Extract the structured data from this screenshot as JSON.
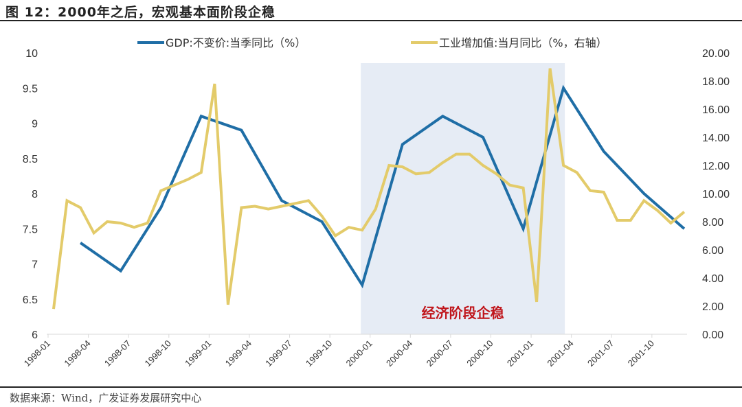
{
  "title": "图 12：2000年之后，宏观基本面阶段企稳",
  "source": "数据来源：Wind，广发证券发展研究中心",
  "chart_data": {
    "type": "line",
    "x": [
      "1998-01",
      "1998-02",
      "1998-03",
      "1998-04",
      "1998-05",
      "1998-06",
      "1998-07",
      "1998-08",
      "1998-09",
      "1998-10",
      "1998-11",
      "1998-12",
      "1999-01",
      "1999-02",
      "1999-03",
      "1999-04",
      "1999-05",
      "1999-06",
      "1999-07",
      "1999-08",
      "1999-09",
      "1999-10",
      "1999-11",
      "1999-12",
      "2000-01",
      "2000-02",
      "2000-03",
      "2000-04",
      "2000-05",
      "2000-06",
      "2000-07",
      "2000-08",
      "2000-09",
      "2000-10",
      "2000-11",
      "2000-12",
      "2001-01",
      "2001-02",
      "2001-03",
      "2001-04",
      "2001-05",
      "2001-06",
      "2001-07",
      "2001-08",
      "2001-09",
      "2001-10",
      "2001-11",
      "2001-12"
    ],
    "xtick_labels": [
      "1998-01",
      "1998-04",
      "1998-07",
      "1998-10",
      "1999-01",
      "1999-04",
      "1999-07",
      "1999-10",
      "2000-01",
      "2000-04",
      "2000-07",
      "2000-10",
      "2001-01",
      "2001-04",
      "2001-07",
      "2001-10"
    ],
    "series": [
      {
        "name": "GDP:不变价:当季同比（%）",
        "axis": "left",
        "color": "#1f6ea6",
        "values": [
          null,
          null,
          7.3,
          null,
          null,
          6.9,
          null,
          null,
          7.8,
          null,
          null,
          9.1,
          null,
          null,
          8.9,
          null,
          null,
          7.9,
          null,
          null,
          7.6,
          null,
          null,
          6.7,
          null,
          null,
          8.7,
          null,
          null,
          9.1,
          null,
          null,
          8.8,
          null,
          null,
          7.5,
          null,
          null,
          9.5,
          null,
          null,
          8.6,
          null,
          null,
          8.0,
          null,
          null,
          7.5
        ]
      },
      {
        "name": "工业增加值:当月同比（%，右轴）",
        "axis": "right",
        "color": "#e3cb6a",
        "values": [
          1.8,
          9.5,
          9.0,
          7.2,
          8.0,
          7.9,
          7.6,
          7.9,
          10.2,
          10.6,
          11.0,
          11.5,
          17.8,
          2.1,
          9.0,
          9.1,
          8.9,
          9.1,
          9.3,
          9.5,
          8.4,
          7.0,
          7.6,
          7.4,
          8.9,
          12.0,
          11.9,
          11.4,
          11.5,
          12.2,
          12.8,
          12.8,
          12.0,
          11.4,
          10.6,
          10.4,
          2.3,
          18.9,
          12.0,
          11.5,
          10.2,
          10.1,
          8.1,
          8.1,
          9.5,
          8.8,
          7.9,
          8.7
        ]
      }
    ],
    "y_left": {
      "range": [
        6,
        10
      ],
      "ticks": [
        "6",
        "6.5",
        "7",
        "7.5",
        "8",
        "8.5",
        "9",
        "9.5",
        "10"
      ]
    },
    "y_right": {
      "range": [
        0,
        20
      ],
      "ticks": [
        "0.00",
        "2.00",
        "4.00",
        "6.00",
        "8.00",
        "10.00",
        "12.00",
        "14.00",
        "16.00",
        "18.00",
        "20.00"
      ]
    },
    "shaded_region": {
      "from": "1999-12",
      "to": "2001-03",
      "label": "经济阶段企稳",
      "fill": "#e6ecf5",
      "label_color": "#c0161c"
    },
    "grid": false,
    "legend_placement": "top"
  }
}
